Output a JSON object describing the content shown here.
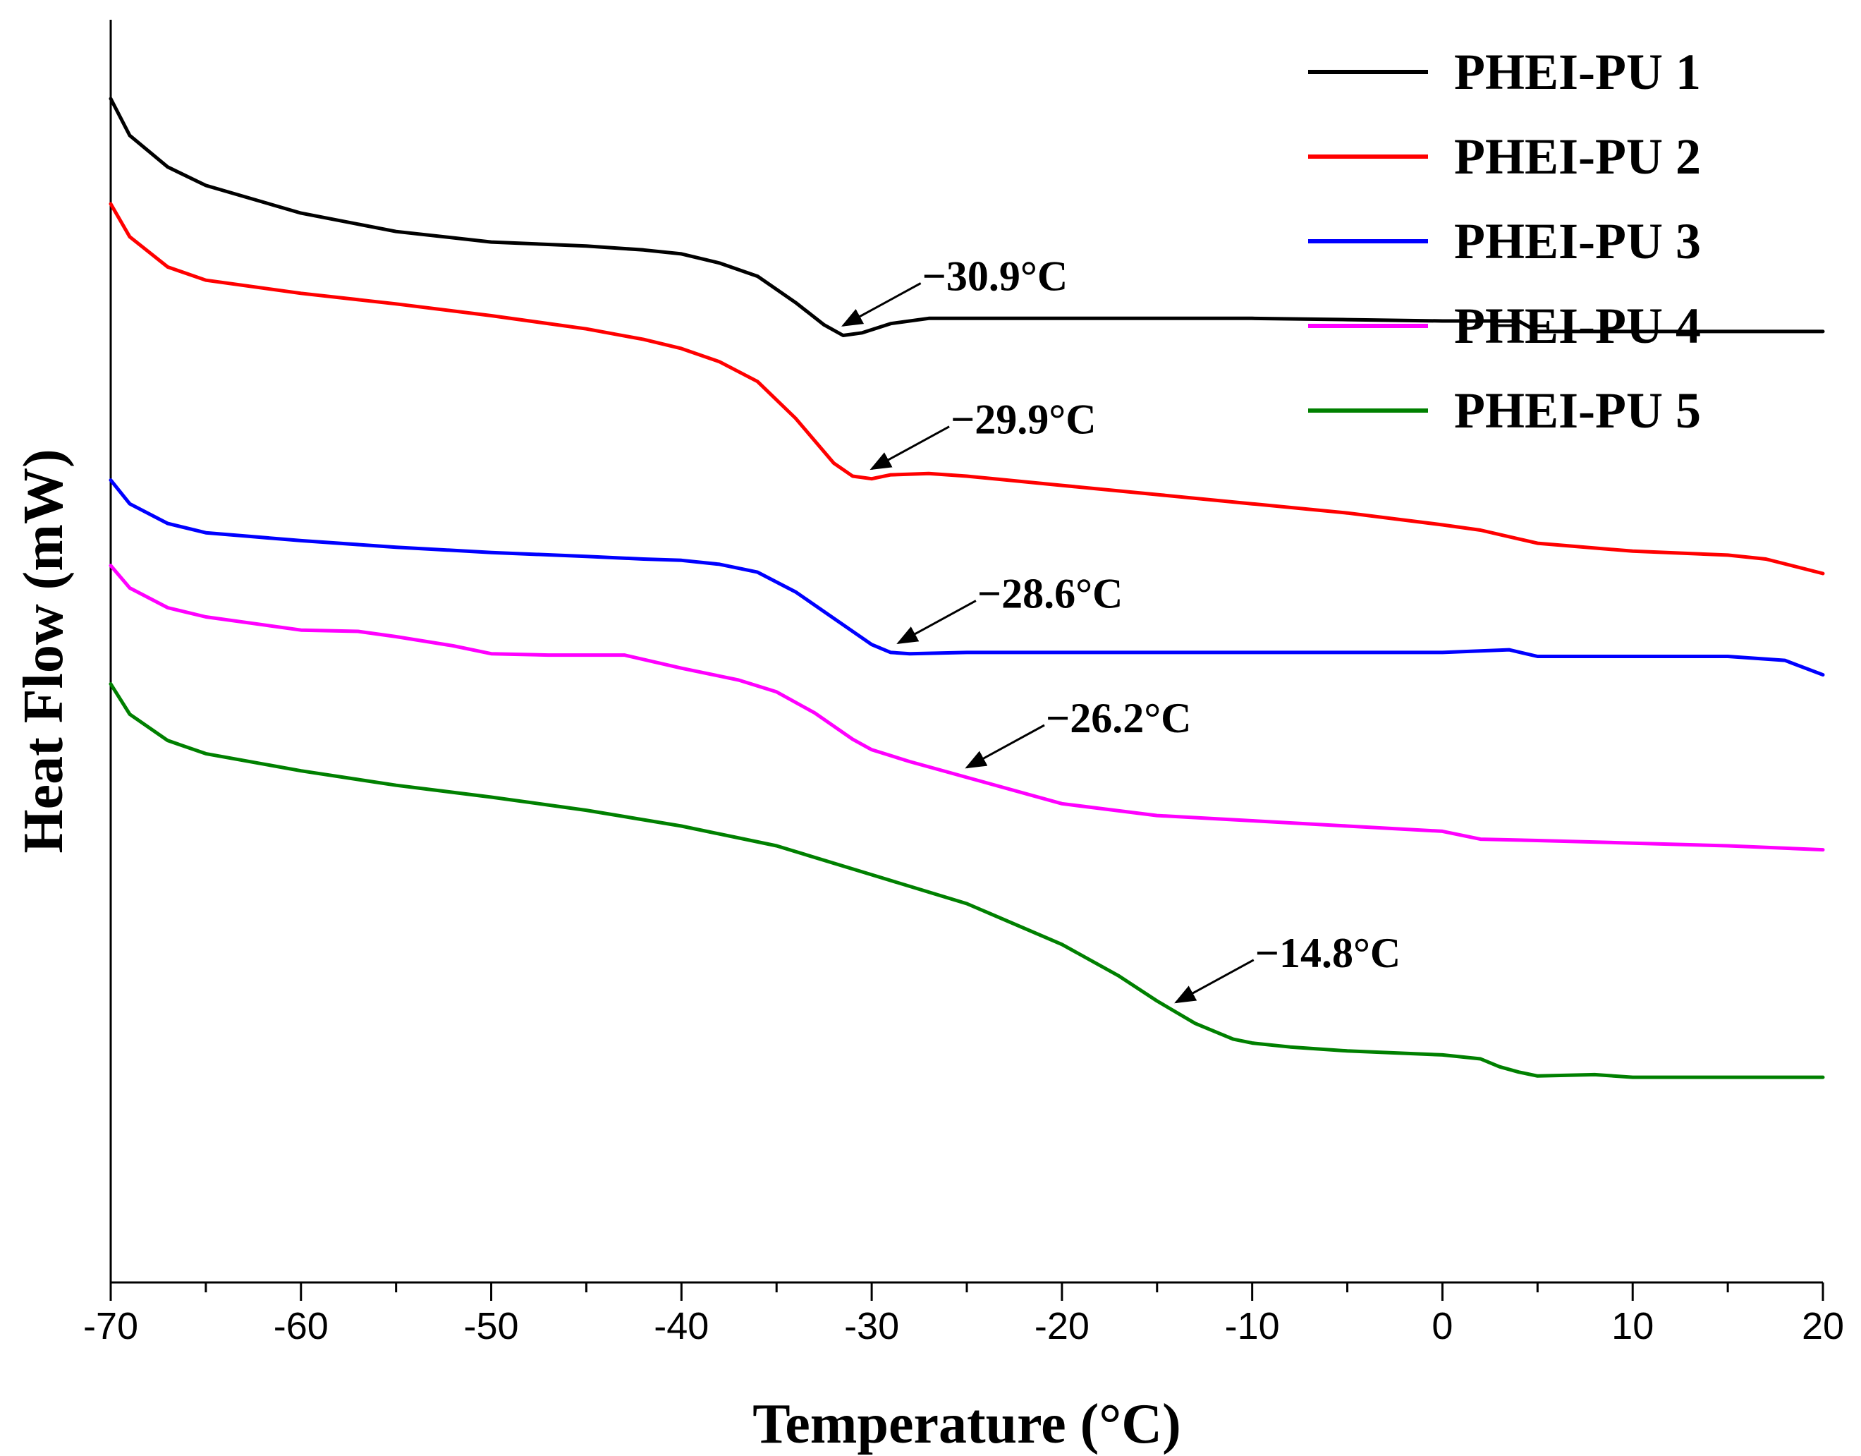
{
  "chart_data": {
    "type": "line",
    "title": "",
    "xlabel": "Temperature (°C)",
    "ylabel": "Heat Flow (mW)",
    "xlim": [
      -70,
      20
    ],
    "xticks": [
      -70,
      -60,
      -50,
      -40,
      -30,
      -20,
      -10,
      0,
      10,
      20
    ],
    "y_tick_labels": "none",
    "legend_position": "top-right",
    "series": [
      {
        "name": "PHEI-PU 1",
        "color": "#000000",
        "x": [
          -70,
          -69,
          -67,
          -65,
          -60,
          -55,
          -50,
          -45,
          -42,
          -40,
          -38,
          -36,
          -34,
          -32.5,
          -31.5,
          -30.5,
          -29,
          -27,
          -25,
          -20,
          -15,
          -10,
          -5,
          0,
          4,
          5,
          10,
          15,
          20
        ],
        "y": [
          9.0,
          8.72,
          8.48,
          8.34,
          8.13,
          7.99,
          7.91,
          7.88,
          7.85,
          7.82,
          7.75,
          7.65,
          7.45,
          7.28,
          7.2,
          7.22,
          7.29,
          7.33,
          7.33,
          7.33,
          7.33,
          7.33,
          7.32,
          7.31,
          7.31,
          7.23,
          7.23,
          7.23,
          7.23
        ]
      },
      {
        "name": "PHEI-PU 2",
        "color": "#ff0000",
        "x": [
          -70,
          -69,
          -67,
          -65,
          -60,
          -55,
          -50,
          -45,
          -42,
          -40,
          -38,
          -36,
          -34,
          -32,
          -31,
          -30,
          -29,
          -27,
          -25,
          -20,
          -15,
          -10,
          -5,
          0,
          2,
          5,
          10,
          15,
          17,
          20
        ],
        "y": [
          8.2,
          7.95,
          7.72,
          7.62,
          7.52,
          7.44,
          7.35,
          7.25,
          7.17,
          7.1,
          7.0,
          6.85,
          6.57,
          6.23,
          6.13,
          6.11,
          6.14,
          6.15,
          6.13,
          6.06,
          5.99,
          5.92,
          5.85,
          5.76,
          5.72,
          5.62,
          5.56,
          5.53,
          5.5,
          5.39
        ]
      },
      {
        "name": "PHEI-PU 3",
        "color": "#0000ff",
        "x": [
          -70,
          -69,
          -67,
          -65,
          -60,
          -55,
          -50,
          -45,
          -42,
          -40,
          -38,
          -36,
          -34,
          -32,
          -30,
          -29,
          -28,
          -25,
          -20,
          -15,
          -10,
          -5,
          0,
          3.5,
          5,
          10,
          15,
          18,
          20
        ],
        "y": [
          6.1,
          5.92,
          5.77,
          5.7,
          5.64,
          5.59,
          5.55,
          5.52,
          5.5,
          5.49,
          5.46,
          5.4,
          5.25,
          5.05,
          4.85,
          4.79,
          4.78,
          4.79,
          4.79,
          4.79,
          4.79,
          4.79,
          4.79,
          4.81,
          4.76,
          4.76,
          4.76,
          4.73,
          4.62
        ]
      },
      {
        "name": "PHEI-PU 4",
        "color": "#ff00ff",
        "x": [
          -70,
          -69,
          -67,
          -65,
          -62,
          -60,
          -57,
          -55,
          -52,
          -50,
          -47,
          -45,
          -43,
          -40,
          -37,
          -35,
          -33,
          -31,
          -30,
          -28,
          -26,
          -25,
          -20,
          -15,
          -10,
          -5,
          0,
          2,
          5,
          10,
          15,
          20
        ],
        "y": [
          5.45,
          5.28,
          5.13,
          5.06,
          5.0,
          4.96,
          4.95,
          4.91,
          4.84,
          4.78,
          4.77,
          4.77,
          4.77,
          4.67,
          4.58,
          4.49,
          4.33,
          4.13,
          4.05,
          3.96,
          3.88,
          3.84,
          3.64,
          3.55,
          3.51,
          3.47,
          3.43,
          3.37,
          3.36,
          3.34,
          3.32,
          3.29
        ]
      },
      {
        "name": "PHEI-PU 5",
        "color": "#008000",
        "x": [
          -70,
          -69,
          -67,
          -65,
          -60,
          -55,
          -50,
          -45,
          -40,
          -35,
          -30,
          -25,
          -20,
          -17,
          -15,
          -13,
          -11,
          -10,
          -8,
          -5,
          0,
          2,
          3,
          4,
          5,
          8,
          10,
          15,
          20
        ],
        "y": [
          4.55,
          4.32,
          4.12,
          4.02,
          3.89,
          3.78,
          3.69,
          3.59,
          3.47,
          3.32,
          3.1,
          2.88,
          2.57,
          2.33,
          2.14,
          1.97,
          1.85,
          1.82,
          1.79,
          1.76,
          1.73,
          1.7,
          1.64,
          1.6,
          1.57,
          1.58,
          1.56,
          1.56,
          1.56
        ]
      }
    ],
    "annotations": [
      {
        "label": "−30.9°C",
        "series": "PHEI-PU 1",
        "x": -31.5
      },
      {
        "label": "−29.9°C",
        "series": "PHEI-PU 2",
        "x": -30.0
      },
      {
        "label": "−28.6°C",
        "series": "PHEI-PU 3",
        "x": -28.6
      },
      {
        "label": "−26.2°C",
        "series": "PHEI-PU 4",
        "x": -25.0
      },
      {
        "label": "−14.8°C",
        "series": "PHEI-PU 5",
        "x": -14.0
      }
    ]
  }
}
